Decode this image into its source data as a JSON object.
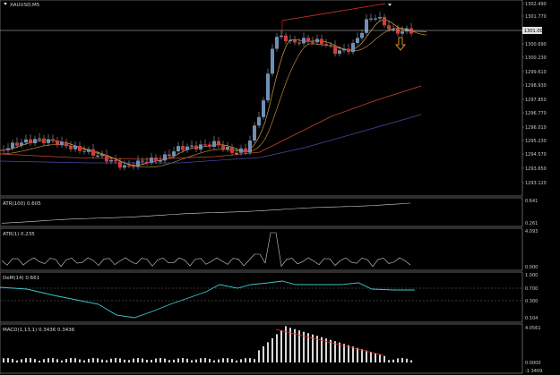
{
  "symbol": "XAUUSD,M5",
  "colors": {
    "background": "#000000",
    "bull_candle": "#6f8fb8",
    "bear_candle": "#d23b3b",
    "ma_fast": "#d8a040",
    "ma_mid": "#c84a2a",
    "ma_slow": "#4a4aa8",
    "divergence": "#e03030",
    "arrow": "#e08a20",
    "demarker": "#3ac8d0",
    "macd_hist": "#d8d8d8"
  },
  "main_axis": [
    "1302.490",
    "1301.770",
    "1300.690",
    "1300.230",
    "1299.610",
    "1298.930",
    "1297.850",
    "1296.770",
    "1296.010",
    "1295.230",
    "1294.570",
    "1293.650",
    "1293.120"
  ],
  "current_price": "1301.000",
  "panels": [
    {
      "name": "atr-100",
      "label": "ATR(100) 0.605",
      "axis": [
        "0.641",
        "0.261"
      ]
    },
    {
      "name": "atr-1",
      "label": "ATR(1) 0.235",
      "axis": [
        "4.093",
        "0.000"
      ]
    },
    {
      "name": "demarker",
      "label": "DeM(14) 0.661",
      "axis": [
        "1.000",
        "0.700",
        "0.300",
        "0.104"
      ]
    },
    {
      "name": "macd",
      "label": "MACD(1,13,1) 0.3436 0.3436",
      "axis": [
        "4.0561",
        "0.0000",
        "-1.3409"
      ]
    }
  ]
}
